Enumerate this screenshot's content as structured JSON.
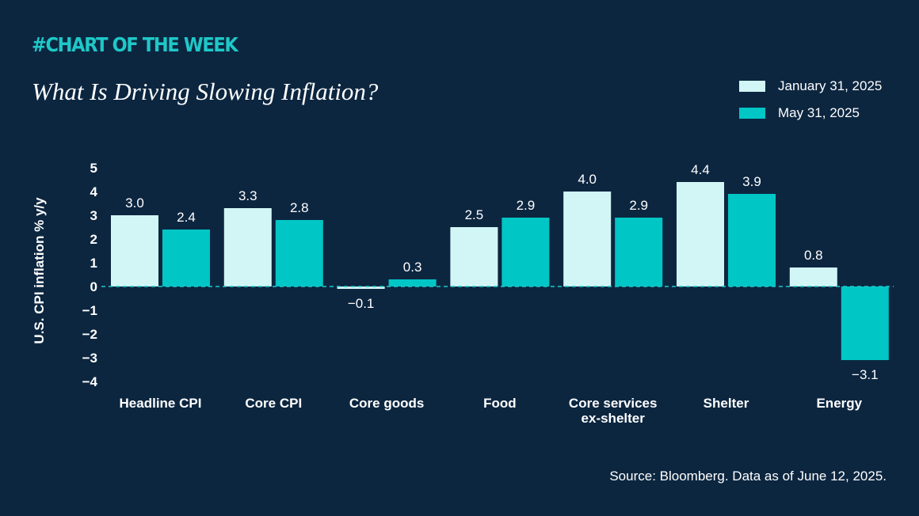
{
  "header": {
    "kicker": "#CHART OF THE WEEK",
    "title": "What Is Driving Slowing Inflation?"
  },
  "footer": {
    "source": "Source: Bloomberg. Data as of June 12, 2025."
  },
  "colors": {
    "background": "#0c2640",
    "series_jan": "#d2f6f6",
    "series_may": "#00c6c6",
    "accent": "#1ec8c8"
  },
  "chart_data": {
    "type": "bar",
    "title": "What Is Driving Slowing Inflation?",
    "xlabel": "",
    "ylabel": "U.S. CPI inflation % y/y",
    "ylim": [
      -4,
      5
    ],
    "yticks": [
      5,
      4,
      3,
      2,
      1,
      0,
      -1,
      -2,
      -3,
      -4
    ],
    "ytick_labels": [
      "5",
      "4",
      "3",
      "2",
      "1",
      "0",
      "−1",
      "−2",
      "−3",
      "−4"
    ],
    "zero_line": "dashed",
    "legend_position": "top-right",
    "categories": [
      [
        "Headline CPI"
      ],
      [
        "Core CPI"
      ],
      [
        "Core goods"
      ],
      [
        "Food"
      ],
      [
        "Core services",
        "ex-shelter"
      ],
      [
        "Shelter"
      ],
      [
        "Energy"
      ]
    ],
    "series": [
      {
        "name": "January 31, 2025",
        "values": [
          3.0,
          3.3,
          -0.1,
          2.5,
          4.0,
          4.4,
          0.8
        ],
        "labels": [
          "3.0",
          "3.3",
          "−0.1",
          "2.5",
          "4.0",
          "4.4",
          "0.8"
        ]
      },
      {
        "name": "May 31, 2025",
        "values": [
          2.4,
          2.8,
          0.3,
          2.9,
          2.9,
          3.9,
          -3.1
        ],
        "labels": [
          "2.4",
          "2.8",
          "0.3",
          "2.9",
          "2.9",
          "3.9",
          "−3.1"
        ]
      }
    ]
  }
}
